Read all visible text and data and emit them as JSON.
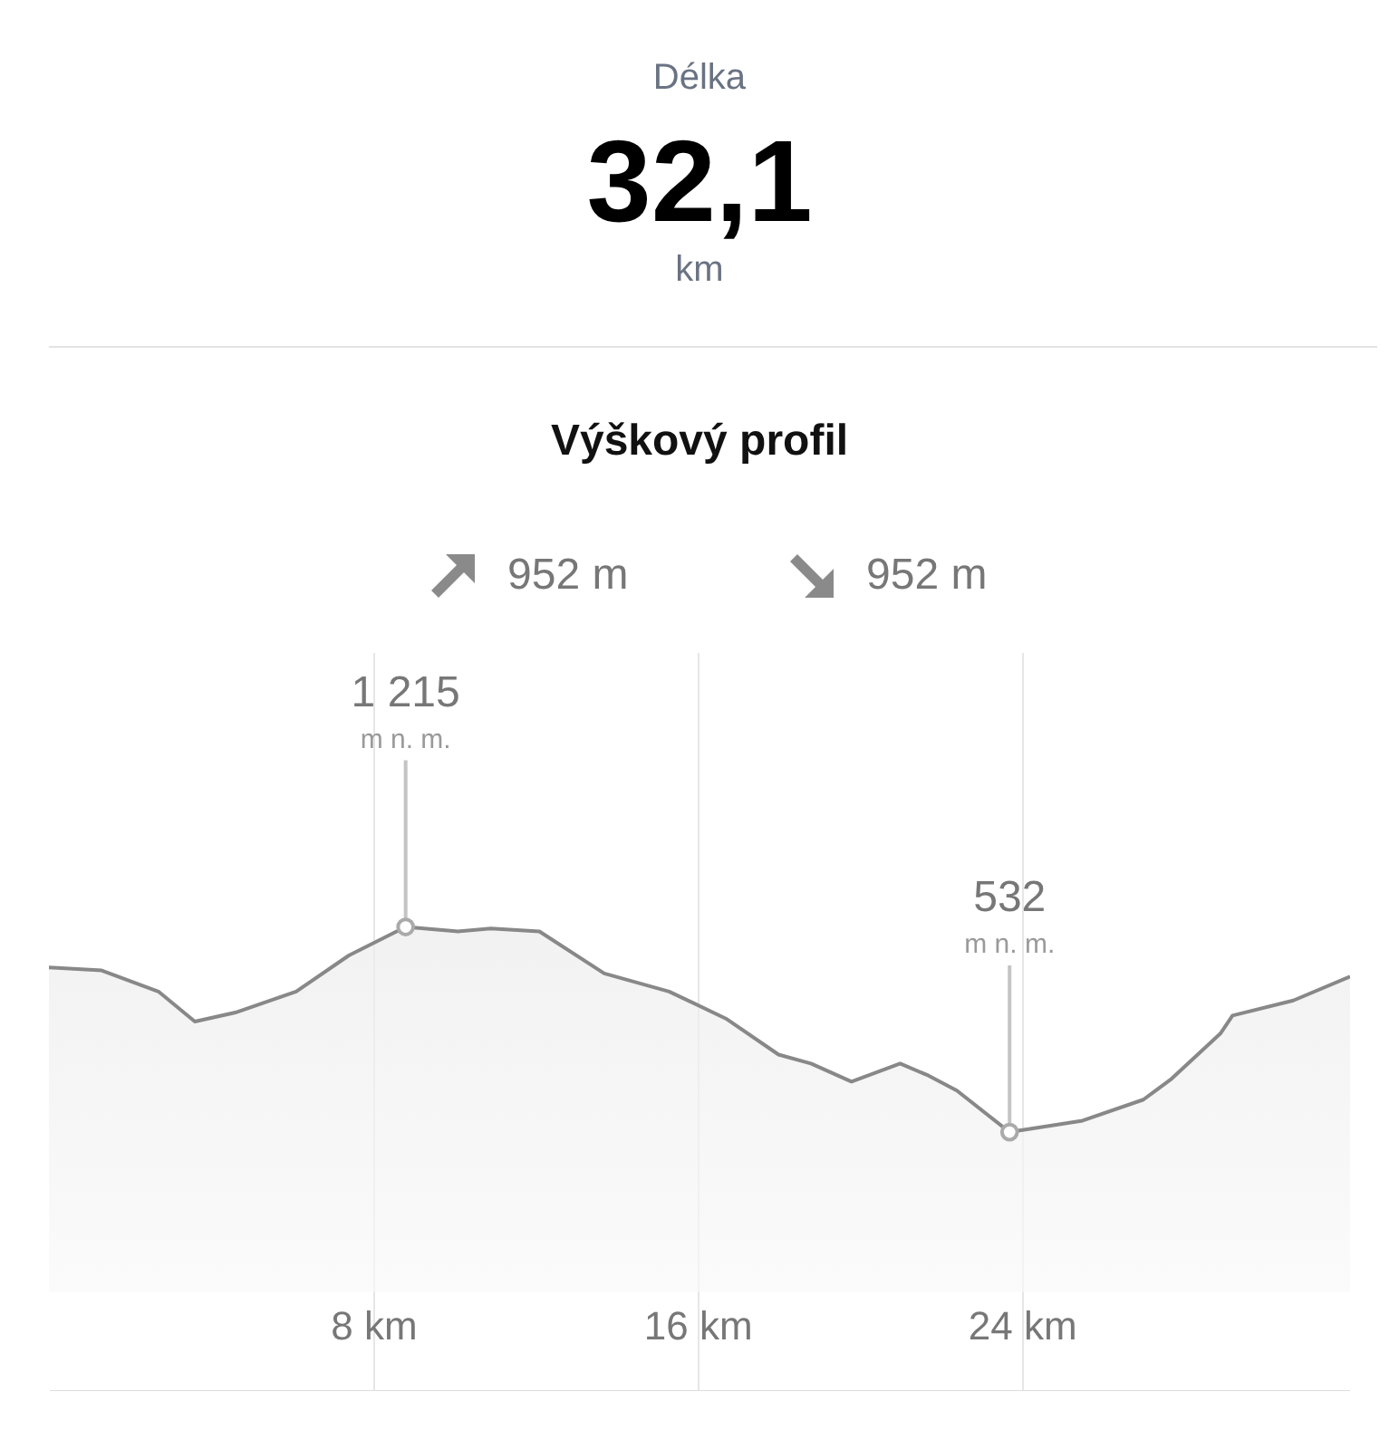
{
  "chart_data": {
    "type": "area",
    "title": "Výškový profil",
    "annotations": [
      "Délka",
      "32,1",
      "km",
      "952 m",
      "952 m",
      "m n. m.",
      "m n. m."
    ],
    "x": [
      0,
      1.3,
      2.7,
      3.6,
      4.6,
      6.1,
      7.4,
      8.8,
      10.1,
      10.9,
      12.1,
      13.7,
      15.3,
      16.7,
      18.0,
      18.8,
      19.8,
      21.0,
      21.7,
      22.4,
      23.7,
      25.5,
      27.0,
      27.7,
      28.9,
      29.2,
      30.7,
      32.1
    ],
    "series": [
      {
        "color": "#888888",
        "values": [
          1080,
          1070,
          1000,
          900,
          930,
          1000,
          1120,
          1215,
          1200,
          1210,
          1200,
          1060,
          1000,
          910,
          790,
          760,
          700,
          760,
          720,
          670,
          532,
          570,
          640,
          710,
          860,
          920,
          970,
          1050
        ],
        "value_labels": [
          null,
          null,
          null,
          null,
          null,
          null,
          null,
          "1 215",
          null,
          null,
          null,
          null,
          null,
          null,
          null,
          null,
          null,
          null,
          null,
          null,
          "532",
          null,
          null,
          null,
          null,
          null,
          null,
          null
        ]
      }
    ],
    "xlim": [
      0,
      32.1
    ],
    "ylim": [
      -330,
      2130
    ],
    "xticks": [
      {
        "value": 8,
        "label": "8 km"
      },
      {
        "value": 16,
        "label": "16 km"
      },
      {
        "value": 24,
        "label": "24 km"
      }
    ],
    "grid": "x",
    "tick_labels": "x"
  }
}
